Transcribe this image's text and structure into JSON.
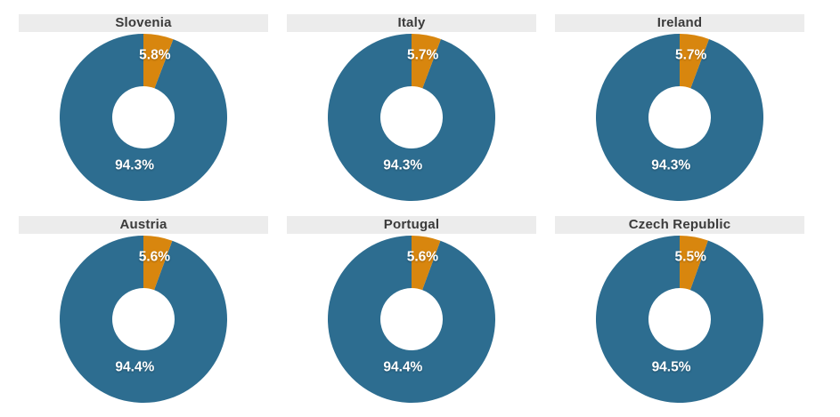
{
  "chart_data": {
    "type": "pie",
    "subtype": "donut",
    "layout": {
      "rows": 2,
      "cols": 3,
      "order": "row-major"
    },
    "slice_start": "12-o-clock, clockwise, minority slice first",
    "legend": "none",
    "series": [
      {
        "id": "minority",
        "color": "#d8860e"
      },
      {
        "id": "majority",
        "color": "#2d6d90"
      }
    ],
    "charts": [
      {
        "title": "Slovenia",
        "slices": [
          {
            "series": "minority",
            "value": 5.8,
            "label": "5.8%"
          },
          {
            "series": "majority",
            "value": 94.3,
            "label": "94.3%"
          }
        ]
      },
      {
        "title": "Italy",
        "slices": [
          {
            "series": "minority",
            "value": 5.7,
            "label": "5.7%"
          },
          {
            "series": "majority",
            "value": 94.3,
            "label": "94.3%"
          }
        ]
      },
      {
        "title": "Ireland",
        "slices": [
          {
            "series": "minority",
            "value": 5.7,
            "label": "5.7%"
          },
          {
            "series": "majority",
            "value": 94.3,
            "label": "94.3%"
          }
        ]
      },
      {
        "title": "Austria",
        "slices": [
          {
            "series": "minority",
            "value": 5.6,
            "label": "5.6%"
          },
          {
            "series": "majority",
            "value": 94.4,
            "label": "94.4%"
          }
        ]
      },
      {
        "title": "Portugal",
        "slices": [
          {
            "series": "minority",
            "value": 5.6,
            "label": "5.6%"
          },
          {
            "series": "majority",
            "value": 94.4,
            "label": "94.4%"
          }
        ]
      },
      {
        "title": "Czech Republic",
        "slices": [
          {
            "series": "minority",
            "value": 5.5,
            "label": "5.5%"
          },
          {
            "series": "majority",
            "value": 94.5,
            "label": "94.5%"
          }
        ]
      }
    ],
    "styles": {
      "background": "#ffffff",
      "title_band_bg": "#ececec",
      "title_text_color": "#3b3b3b",
      "slice_label_color": "#ffffff"
    }
  }
}
